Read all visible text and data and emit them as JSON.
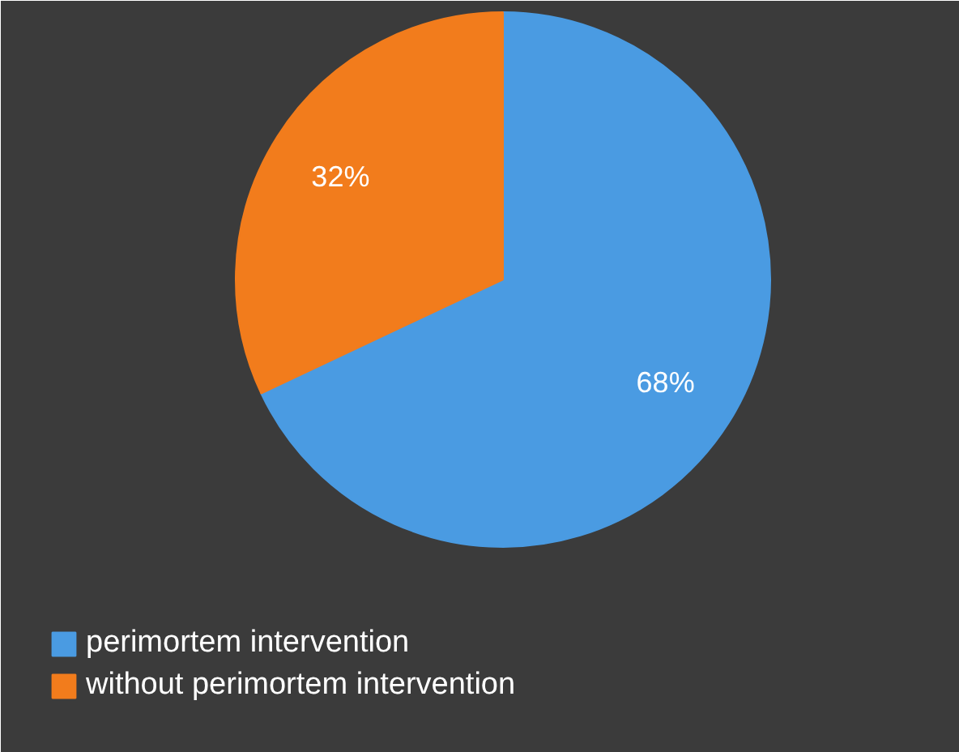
{
  "chart_data": {
    "type": "pie",
    "categories": [
      "perimortem intervention",
      "without perimortem intervention"
    ],
    "values": [
      68,
      32
    ],
    "colors": [
      "#4a9be2",
      "#f27c1c"
    ],
    "value_labels": [
      "68%",
      "32%"
    ],
    "legend": "bottom left"
  }
}
